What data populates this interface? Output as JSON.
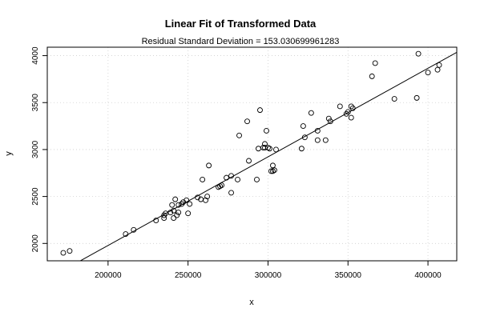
{
  "chart_data": {
    "type": "scatter",
    "title": "Linear Fit of Transformed Data",
    "subtitle": "Residual Standard Deviation =  153.030699961283",
    "xlabel": "x",
    "ylabel": "y",
    "xlim": [
      162000,
      418000
    ],
    "ylim": [
      1815,
      4090
    ],
    "x_ticks": [
      200000,
      250000,
      300000,
      350000,
      400000
    ],
    "y_ticks": [
      2000,
      2500,
      3000,
      3500,
      4000
    ],
    "grid": true,
    "fit_line": {
      "x": [
        162000,
        418000
      ],
      "y": [
        1620,
        4035
      ]
    },
    "points": [
      [
        172000,
        1900
      ],
      [
        176000,
        1920
      ],
      [
        211000,
        2100
      ],
      [
        216000,
        2145
      ],
      [
        230000,
        2245
      ],
      [
        235000,
        2270
      ],
      [
        235000,
        2300
      ],
      [
        236000,
        2320
      ],
      [
        239000,
        2330
      ],
      [
        240000,
        2410
      ],
      [
        241000,
        2270
      ],
      [
        241000,
        2350
      ],
      [
        242000,
        2470
      ],
      [
        243000,
        2300
      ],
      [
        244000,
        2410
      ],
      [
        244000,
        2330
      ],
      [
        246000,
        2420
      ],
      [
        247000,
        2440
      ],
      [
        249000,
        2460
      ],
      [
        250000,
        2320
      ],
      [
        251000,
        2420
      ],
      [
        256000,
        2490
      ],
      [
        258000,
        2470
      ],
      [
        259000,
        2680
      ],
      [
        261000,
        2460
      ],
      [
        262000,
        2500
      ],
      [
        263000,
        2830
      ],
      [
        269000,
        2600
      ],
      [
        270000,
        2610
      ],
      [
        271000,
        2620
      ],
      [
        274000,
        2700
      ],
      [
        277000,
        2720
      ],
      [
        277000,
        2540
      ],
      [
        281000,
        2680
      ],
      [
        282000,
        3150
      ],
      [
        287000,
        3300
      ],
      [
        288000,
        2880
      ],
      [
        293000,
        2680
      ],
      [
        294000,
        3010
      ],
      [
        295000,
        3420
      ],
      [
        297000,
        3020
      ],
      [
        298000,
        3060
      ],
      [
        298000,
        3020
      ],
      [
        299000,
        3200
      ],
      [
        300000,
        3020
      ],
      [
        301000,
        3010
      ],
      [
        302000,
        2770
      ],
      [
        303000,
        2770
      ],
      [
        303000,
        2830
      ],
      [
        304000,
        2780
      ],
      [
        305000,
        3000
      ],
      [
        321000,
        3010
      ],
      [
        322000,
        3250
      ],
      [
        323000,
        3130
      ],
      [
        327000,
        3390
      ],
      [
        331000,
        3200
      ],
      [
        331000,
        3100
      ],
      [
        336000,
        3100
      ],
      [
        338000,
        3330
      ],
      [
        339000,
        3300
      ],
      [
        345000,
        3460
      ],
      [
        349000,
        3380
      ],
      [
        350000,
        3400
      ],
      [
        352000,
        3340
      ],
      [
        352000,
        3460
      ],
      [
        353000,
        3440
      ],
      [
        365000,
        3780
      ],
      [
        367000,
        3920
      ],
      [
        379000,
        3540
      ],
      [
        393000,
        3550
      ],
      [
        394000,
        4020
      ],
      [
        400000,
        3820
      ],
      [
        406000,
        3850
      ],
      [
        407000,
        3900
      ]
    ]
  }
}
